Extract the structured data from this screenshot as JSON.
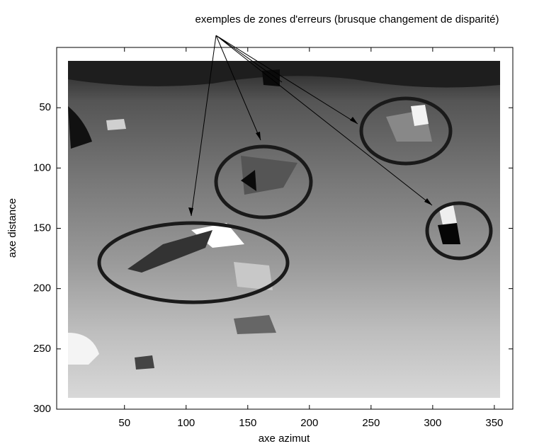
{
  "chart_data": {
    "type": "image",
    "annotation": "exemples de zones d'erreurs (brusque changement de disparité)",
    "x_label": "axe azimut",
    "y_label": "axe distance",
    "xlim": [
      -5,
      365
    ],
    "xticks": [
      50,
      100,
      150,
      200,
      250,
      300,
      350
    ],
    "ylim": [
      0,
      300
    ],
    "yticks": [
      50,
      100,
      150,
      200,
      250,
      300
    ],
    "y_reversed": true
  }
}
